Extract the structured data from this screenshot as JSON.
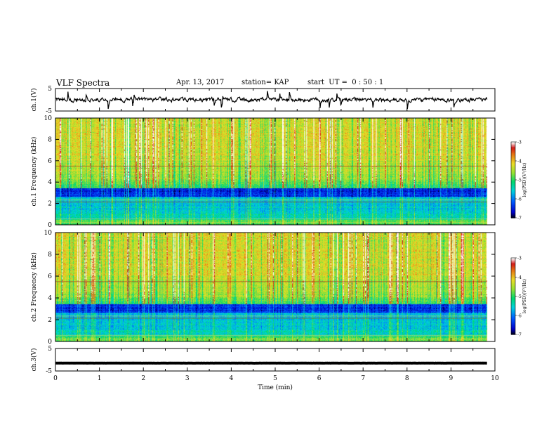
{
  "header": {
    "title": "VLF Spectra",
    "date": "Apr. 13, 2017",
    "station": "station= KAP",
    "start_ut": "start  UT =  0 : 50 : 1"
  },
  "colors": {
    "trace": "#000000",
    "colormap": [
      "#000000",
      "#0000e6",
      "#0078ff",
      "#00dcdc",
      "#00dc64",
      "#a0e632",
      "#f0dc28",
      "#e67814",
      "#d21414",
      "#ffffff"
    ]
  },
  "chart_data": [
    {
      "type": "line",
      "name": "ch1-waveform",
      "ylabel": "ch.1(V)",
      "ylim": [
        -5,
        5
      ],
      "yticks": [
        "5",
        "-5"
      ],
      "xlim": [
        0,
        10
      ],
      "trace_level_v": 0.0,
      "trace_noise_v": 1.3
    },
    {
      "type": "heatmap",
      "name": "ch1-spectrogram",
      "ylabel": "ch.1 Frequency (kHz)",
      "ylim": [
        0,
        10
      ],
      "yticks": [
        "0",
        "2",
        "4",
        "6",
        "8",
        "10"
      ],
      "xlim": [
        0,
        10.0
      ],
      "data_end_min": 9.82,
      "description": "log PSD, high (orange/red) above ~3.5 kHz, low (blue) band 2.6–3.4 kHz",
      "colorbar": {
        "label": "log(PSD)(V²/Hz)",
        "range": [
          -7,
          -3
        ],
        "ticks": [
          "-3",
          "-4",
          "-5",
          "-6",
          "-7"
        ]
      }
    },
    {
      "type": "heatmap",
      "name": "ch2-spectrogram",
      "ylabel": "ch.2 Frequency (kHz)",
      "ylim": [
        0,
        10
      ],
      "yticks": [
        "0",
        "2",
        "4",
        "6",
        "8",
        "10"
      ],
      "xlim": [
        0,
        10.0
      ],
      "data_end_min": 9.82,
      "colorbar": {
        "label": "log(PSD)(V²/Hz)",
        "range": [
          -7,
          -3
        ],
        "ticks": [
          "-3",
          "-4",
          "-5",
          "-6",
          "-7"
        ]
      }
    },
    {
      "type": "line",
      "name": "ch3-waveform",
      "ylabel": "ch.3(V)",
      "ylim": [
        -5,
        5
      ],
      "yticks": [
        "5",
        "-5"
      ],
      "xlim": [
        0,
        10
      ],
      "trace_level_v": -1.5,
      "trace_noise_v": 0.05,
      "xlabel": "Time (min)",
      "xticks": [
        "0",
        "1",
        "2",
        "3",
        "4",
        "5",
        "6",
        "7",
        "8",
        "9",
        "10"
      ]
    }
  ]
}
